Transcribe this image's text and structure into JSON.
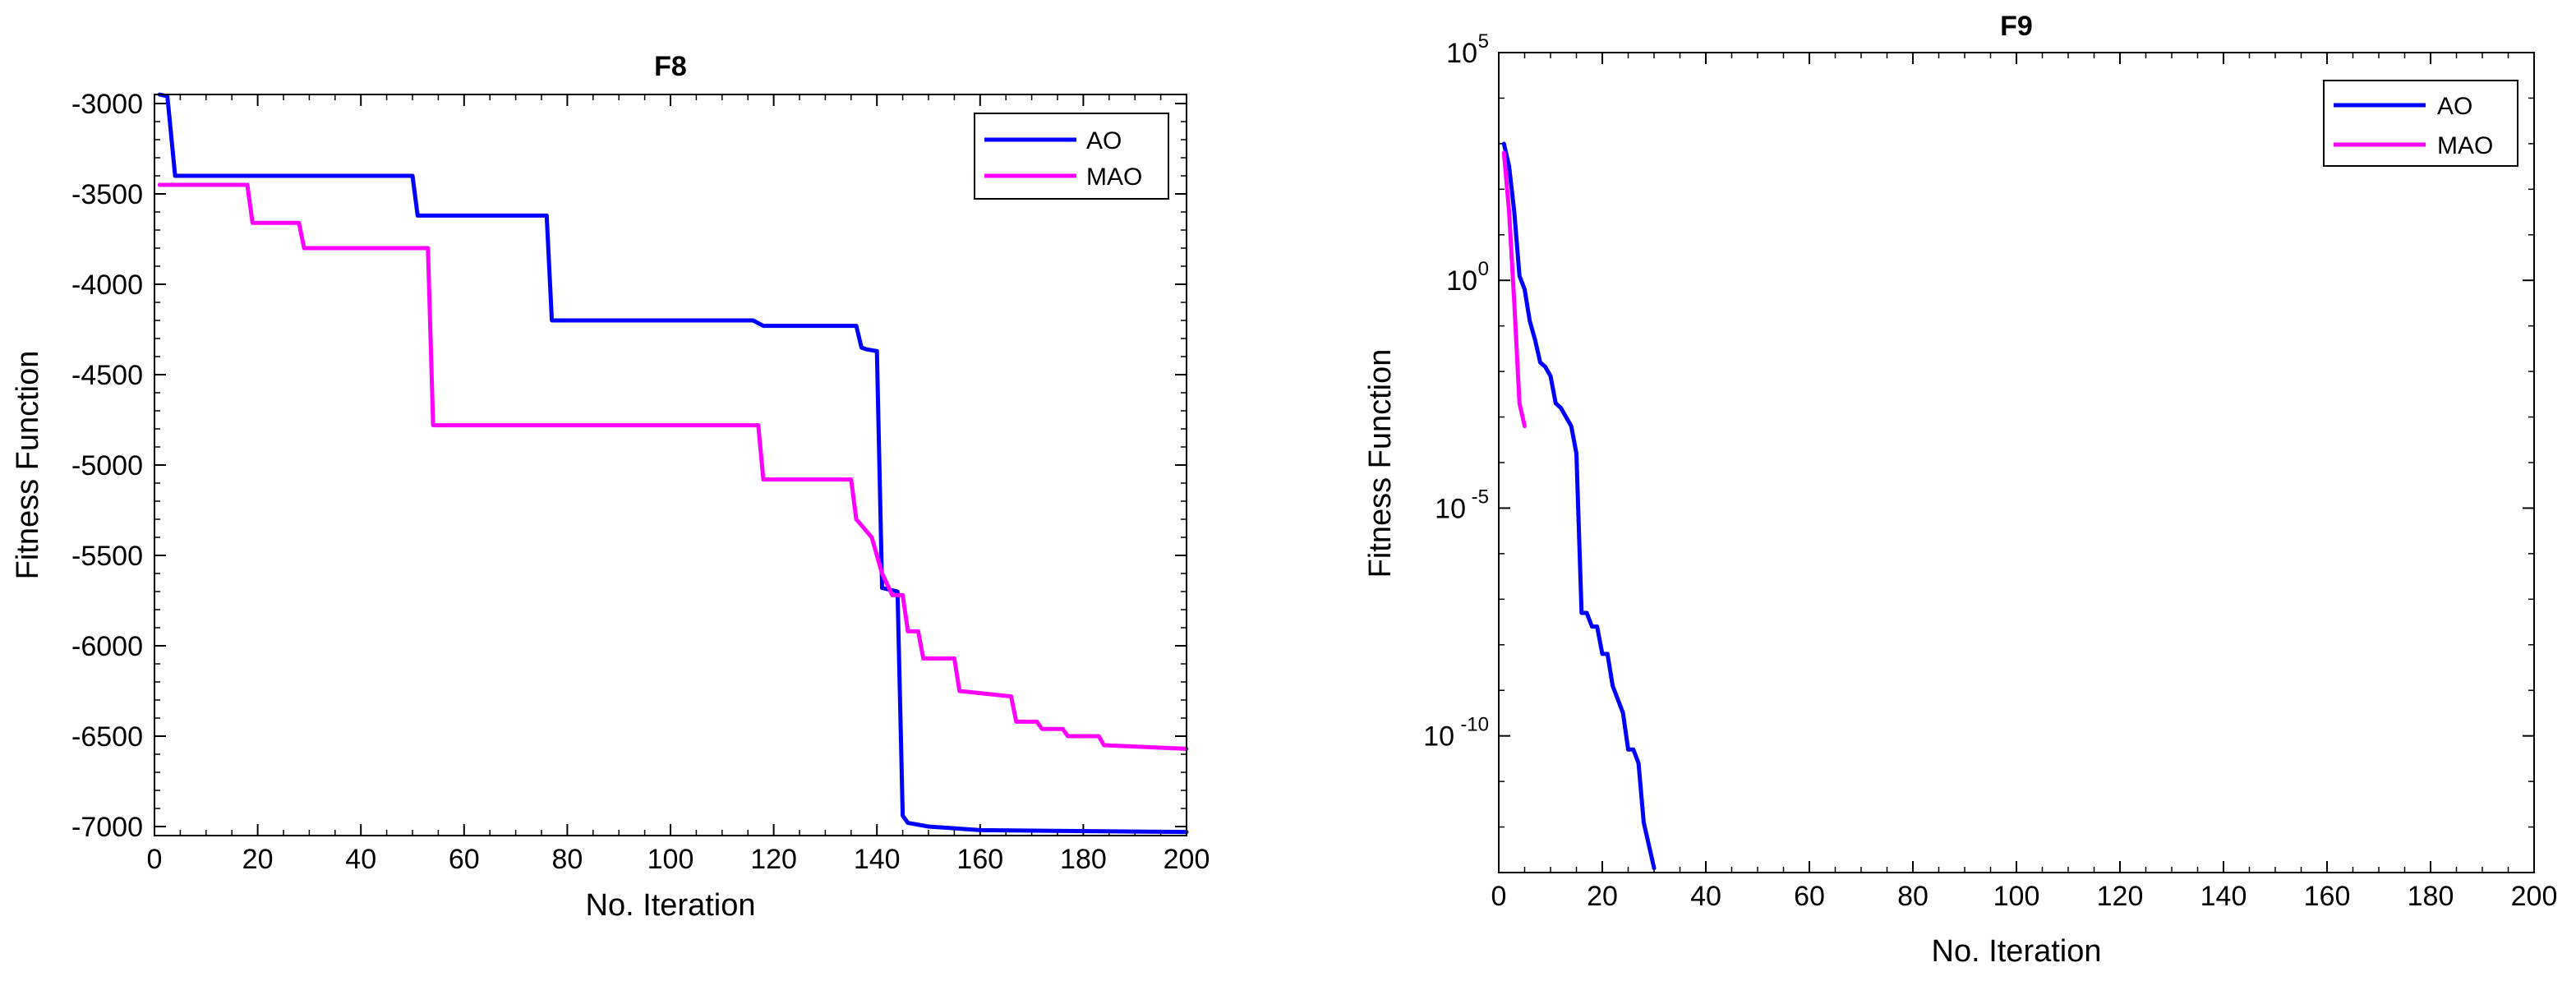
{
  "chart_data": [
    {
      "id": "f8",
      "type": "line",
      "title": "F8",
      "xlabel": "No. Iteration",
      "ylabel": "Fitness Function",
      "xlim": [
        0,
        200
      ],
      "ylim": [
        -7050,
        -2950
      ],
      "xticks": [
        "0",
        "20",
        "40",
        "60",
        "80",
        "100",
        "120",
        "140",
        "160",
        "180",
        "200"
      ],
      "yticks": [
        "-3000",
        "-3500",
        "-4000",
        "-4500",
        "-5000",
        "-5500",
        "-6000",
        "-6500",
        "-7000"
      ],
      "legend_position": "top-right",
      "series": [
        {
          "name": "AO",
          "color": "#0000ff",
          "x": [
            1,
            2.5,
            4,
            50,
            51,
            76,
            77,
            116,
            118,
            136,
            137,
            138,
            140,
            141,
            144,
            145,
            146,
            150,
            160,
            200
          ],
          "y": [
            -2950,
            -2960,
            -3400,
            -3400,
            -3620,
            -3620,
            -4200,
            -4200,
            -4230,
            -4230,
            -4350,
            -4360,
            -4370,
            -5680,
            -5700,
            -6940,
            -6980,
            -7000,
            -7020,
            -7030
          ]
        },
        {
          "name": "MAO",
          "color": "#ff00ff",
          "x": [
            1,
            18,
            19,
            28,
            29,
            53,
            54,
            117,
            118,
            135,
            136,
            139,
            141,
            143,
            145,
            146,
            148,
            149,
            155,
            156,
            166,
            167,
            171,
            172,
            176,
            177,
            183,
            184,
            200
          ],
          "y": [
            -3450,
            -3450,
            -3660,
            -3660,
            -3800,
            -3800,
            -4780,
            -4780,
            -5080,
            -5080,
            -5300,
            -5400,
            -5600,
            -5720,
            -5720,
            -5920,
            -5920,
            -6070,
            -6070,
            -6250,
            -6280,
            -6420,
            -6420,
            -6460,
            -6460,
            -6500,
            -6500,
            -6550,
            -6570
          ]
        }
      ]
    },
    {
      "id": "f9",
      "type": "line",
      "title": "F9",
      "xlabel": "No. Iteration",
      "ylabel": "Fitness Function",
      "yscale": "log",
      "xlim": [
        0,
        200
      ],
      "ylim_log10": [
        -13,
        5
      ],
      "xticks": [
        "0",
        "20",
        "40",
        "60",
        "80",
        "100",
        "120",
        "140",
        "160",
        "180",
        "200"
      ],
      "yticks": [
        {
          "base": "10",
          "exp": "5"
        },
        {
          "base": "10",
          "exp": "0"
        },
        {
          "base": "10",
          "exp": "-5"
        },
        {
          "base": "10",
          "exp": "-10"
        }
      ],
      "legend_position": "top-right",
      "series": [
        {
          "name": "AO",
          "color": "#0000ff",
          "x": [
            1,
            2,
            3,
            4,
            5,
            6,
            7,
            8,
            9,
            10,
            11,
            12,
            13,
            14,
            15,
            16,
            17,
            18,
            19,
            20,
            21,
            22,
            23,
            24,
            25,
            26,
            27,
            28,
            29,
            30
          ],
          "log10y": [
            3.0,
            2.5,
            1.5,
            0.1,
            -0.2,
            -0.9,
            -1.3,
            -1.8,
            -1.9,
            -2.1,
            -2.7,
            -2.8,
            -3.0,
            -3.2,
            -3.8,
            -7.3,
            -7.3,
            -7.6,
            -7.6,
            -8.2,
            -8.2,
            -8.9,
            -9.2,
            -9.5,
            -10.3,
            -10.3,
            -10.6,
            -11.9,
            -12.4,
            -12.9
          ]
        },
        {
          "name": "MAO",
          "color": "#ff00ff",
          "x": [
            1,
            2,
            3,
            4,
            5
          ],
          "log10y": [
            2.8,
            1.5,
            -0.5,
            -2.7,
            -3.2
          ]
        }
      ]
    }
  ]
}
